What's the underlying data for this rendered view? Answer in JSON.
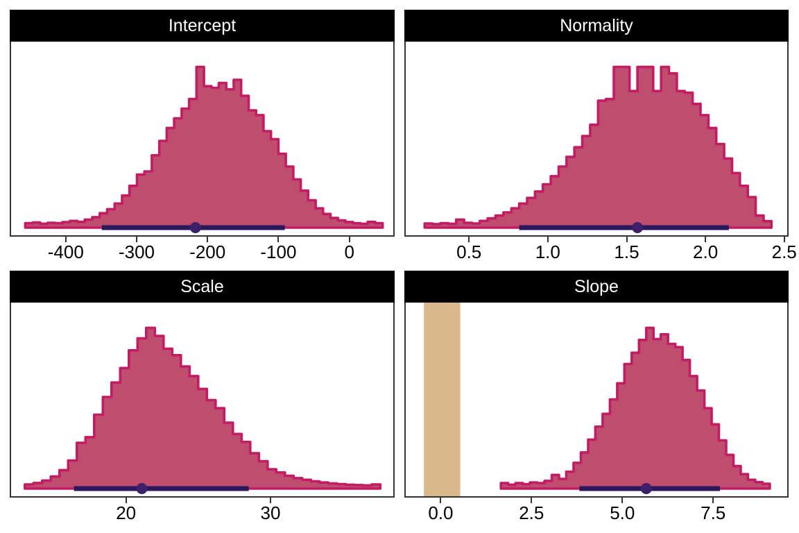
{
  "figure": {
    "background": "#ffffff"
  },
  "colors": {
    "hist_fill": "#BF4D6D",
    "hist_stroke": "#C21C65",
    "ci_bar": "#2B195C",
    "ci_dot": "#3C2069",
    "rope_fill": "#D9B88C",
    "strip_bg": "#000000",
    "strip_text": "#FFFFFF",
    "panel_border": "#333333",
    "axis_text": "#000000",
    "tick_mark": "#333333"
  },
  "chart_data": [
    {
      "type": "area",
      "subtype": "posterior-histogram",
      "title": "Intercept",
      "xlim": [
        -479,
        60
      ],
      "ticks": [
        {
          "value": -400,
          "label": "-400"
        },
        {
          "value": -300,
          "label": "-300"
        },
        {
          "value": -200,
          "label": "-200"
        },
        {
          "value": -100,
          "label": "-100"
        },
        {
          "value": 0,
          "label": "0"
        }
      ],
      "bins": {
        "start": -459,
        "width": 10.5,
        "max_height_frac": 0.83,
        "heights": [
          0.028,
          0.032,
          0.024,
          0.03,
          0.028,
          0.034,
          0.042,
          0.036,
          0.05,
          0.065,
          0.09,
          0.115,
          0.15,
          0.2,
          0.26,
          0.33,
          0.35,
          0.45,
          0.54,
          0.62,
          0.68,
          0.74,
          0.8,
          1.0,
          0.88,
          0.87,
          0.9,
          0.86,
          0.92,
          0.82,
          0.73,
          0.7,
          0.6,
          0.55,
          0.46,
          0.38,
          0.3,
          0.23,
          0.17,
          0.12,
          0.085,
          0.06,
          0.045,
          0.035,
          0.028,
          0.024,
          0.036,
          0.028
        ]
      },
      "ci": {
        "lo": -351,
        "hi": -93,
        "median": -219
      },
      "rope": null
    },
    {
      "type": "area",
      "subtype": "posterior-histogram",
      "title": "Normality",
      "xlim": [
        0.09,
        2.51
      ],
      "ticks": [
        {
          "value": 0.5,
          "label": "0.5"
        },
        {
          "value": 1.0,
          "label": "1.0"
        },
        {
          "value": 1.5,
          "label": "1.5"
        },
        {
          "value": 2.0,
          "label": "2.0"
        },
        {
          "value": 2.5,
          "label": "2.5"
        }
      ],
      "bins": {
        "start": 0.21,
        "width": 0.05,
        "max_height_frac": 0.83,
        "heights": [
          0.026,
          0.022,
          0.028,
          0.024,
          0.05,
          0.03,
          0.026,
          0.042,
          0.058,
          0.075,
          0.095,
          0.12,
          0.15,
          0.185,
          0.225,
          0.27,
          0.32,
          0.38,
          0.44,
          0.5,
          0.57,
          0.64,
          0.79,
          0.8,
          1.0,
          1.0,
          0.85,
          1.0,
          1.0,
          0.85,
          1.0,
          0.96,
          0.85,
          0.84,
          0.77,
          0.7,
          0.62,
          0.52,
          0.43,
          0.34,
          0.26,
          0.19,
          0.075,
          0.04
        ]
      },
      "ci": {
        "lo": 0.81,
        "hi": 2.14,
        "median": 1.56
      },
      "rope": null
    },
    {
      "type": "area",
      "subtype": "posterior-histogram",
      "title": "Scale",
      "xlim": [
        11.95,
        38.4
      ],
      "ticks": [
        {
          "value": 20,
          "label": "20"
        },
        {
          "value": 30,
          "label": "30"
        }
      ],
      "bins": {
        "start": 12.9,
        "width": 0.6,
        "max_height_frac": 0.83,
        "heights": [
          0.026,
          0.035,
          0.05,
          0.075,
          0.115,
          0.175,
          0.285,
          0.32,
          0.46,
          0.57,
          0.66,
          0.75,
          0.86,
          0.935,
          1.0,
          0.95,
          0.87,
          0.83,
          0.76,
          0.7,
          0.62,
          0.55,
          0.5,
          0.41,
          0.34,
          0.29,
          0.22,
          0.17,
          0.12,
          0.1,
          0.08,
          0.065,
          0.055,
          0.045,
          0.038,
          0.032,
          0.028,
          0.024,
          0.022,
          0.02,
          0.026
        ]
      },
      "ci": {
        "lo": 16.3,
        "hi": 28.4,
        "median": 21.0
      },
      "rope": null
    },
    {
      "type": "area",
      "subtype": "posterior-histogram",
      "title": "Slope",
      "xlim": [
        -1.0,
        9.5
      ],
      "ticks": [
        {
          "value": 0.0,
          "label": "0.0"
        },
        {
          "value": 2.5,
          "label": "2.5"
        },
        {
          "value": 5.0,
          "label": "5.0"
        },
        {
          "value": 7.5,
          "label": "7.5"
        }
      ],
      "bins": {
        "start": 1.62,
        "width": 0.2,
        "max_height_frac": 0.83,
        "heights": [
          0.034,
          0.024,
          0.034,
          0.028,
          0.038,
          0.034,
          0.048,
          0.085,
          0.06,
          0.105,
          0.16,
          0.225,
          0.305,
          0.385,
          0.465,
          0.555,
          0.655,
          0.775,
          0.845,
          0.925,
          1.0,
          0.93,
          0.96,
          0.9,
          0.88,
          0.8,
          0.7,
          0.61,
          0.5,
          0.4,
          0.3,
          0.21,
          0.14,
          0.09,
          0.055,
          0.04,
          0.03
        ]
      },
      "ci": {
        "lo": 3.78,
        "hi": 7.65,
        "median": 5.62
      },
      "rope": {
        "lo": -0.5,
        "hi": 0.5
      }
    }
  ]
}
